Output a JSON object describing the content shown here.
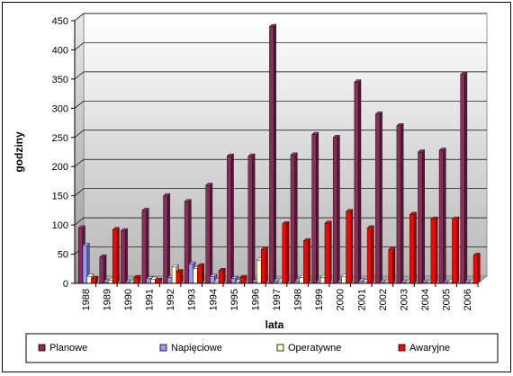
{
  "chart_data": {
    "type": "bar",
    "title": "",
    "xlabel": "lata",
    "ylabel": "godziny",
    "ylim": [
      0,
      450
    ],
    "yticks": [
      0,
      50,
      100,
      150,
      200,
      250,
      300,
      350,
      400,
      450
    ],
    "grid": "horizontal",
    "three_d": true,
    "legend_position": "bottom",
    "categories": [
      "1988",
      "1989",
      "1990",
      "1991",
      "1992",
      "1993",
      "1994",
      "1995",
      "1996",
      "1997",
      "1998",
      "1999",
      "2000",
      "2001",
      "2002",
      "2003",
      "2004",
      "2005",
      "2006"
    ],
    "series": [
      {
        "name": "Planowe",
        "color": "#8b2d5a",
        "values": [
          95,
          45,
          90,
          125,
          150,
          140,
          168,
          218,
          218,
          440,
          220,
          255,
          250,
          345,
          290,
          270,
          225,
          228,
          358
        ]
      },
      {
        "name": "Napięciowe",
        "color": "#9999ff",
        "values": [
          65,
          3,
          2,
          8,
          10,
          33,
          12,
          8,
          3,
          4,
          4,
          2,
          2,
          4,
          2,
          2,
          2,
          2,
          2
        ]
      },
      {
        "name": "Operatywne",
        "color": "#ffffcc",
        "values": [
          12,
          5,
          2,
          7,
          28,
          25,
          4,
          3,
          40,
          4,
          10,
          10,
          12,
          3,
          2,
          2,
          2,
          3,
          2
        ]
      },
      {
        "name": "Awaryjne",
        "color": "#ff0000",
        "values": [
          8,
          92,
          10,
          5,
          20,
          30,
          22,
          10,
          58,
          102,
          73,
          103,
          123,
          95,
          58,
          118,
          110,
          110,
          48
        ]
      }
    ]
  }
}
